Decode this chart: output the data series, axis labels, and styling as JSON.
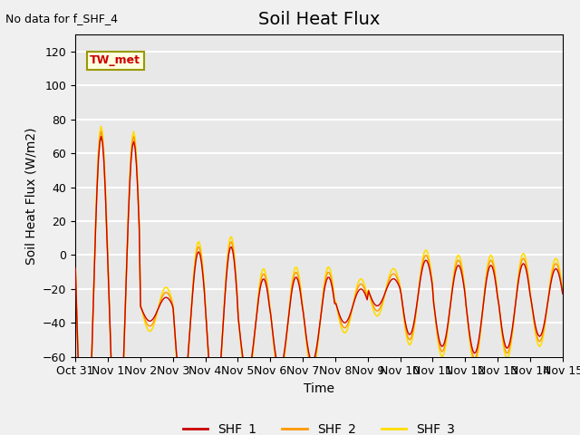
{
  "title": "Soil Heat Flux",
  "ylabel": "Soil Heat Flux (W/m2)",
  "xlabel": "Time",
  "top_left_text": "No data for f_SHF_4",
  "annotation_text": "TW_met",
  "ylim": [
    -60,
    130
  ],
  "yticks": [
    -60,
    -40,
    -20,
    0,
    20,
    40,
    60,
    80,
    100,
    120
  ],
  "xtick_labels": [
    "Oct 31",
    "Nov 1",
    "Nov 2",
    "Nov 3",
    "Nov 4",
    "Nov 5",
    "Nov 6",
    "Nov 7",
    "Nov 8",
    "Nov 9",
    "Nov 10",
    "Nov 11",
    "Nov 12",
    "Nov 13",
    "Nov 14",
    "Nov 15"
  ],
  "colors": {
    "SHF_1": "#cc0000",
    "SHF_2": "#ff9900",
    "SHF_3": "#ffdd00"
  },
  "bg_color": "#e8e8e8",
  "grid_color": "#ffffff",
  "title_fontsize": 14,
  "label_fontsize": 10,
  "tick_label_fontsize": 9
}
